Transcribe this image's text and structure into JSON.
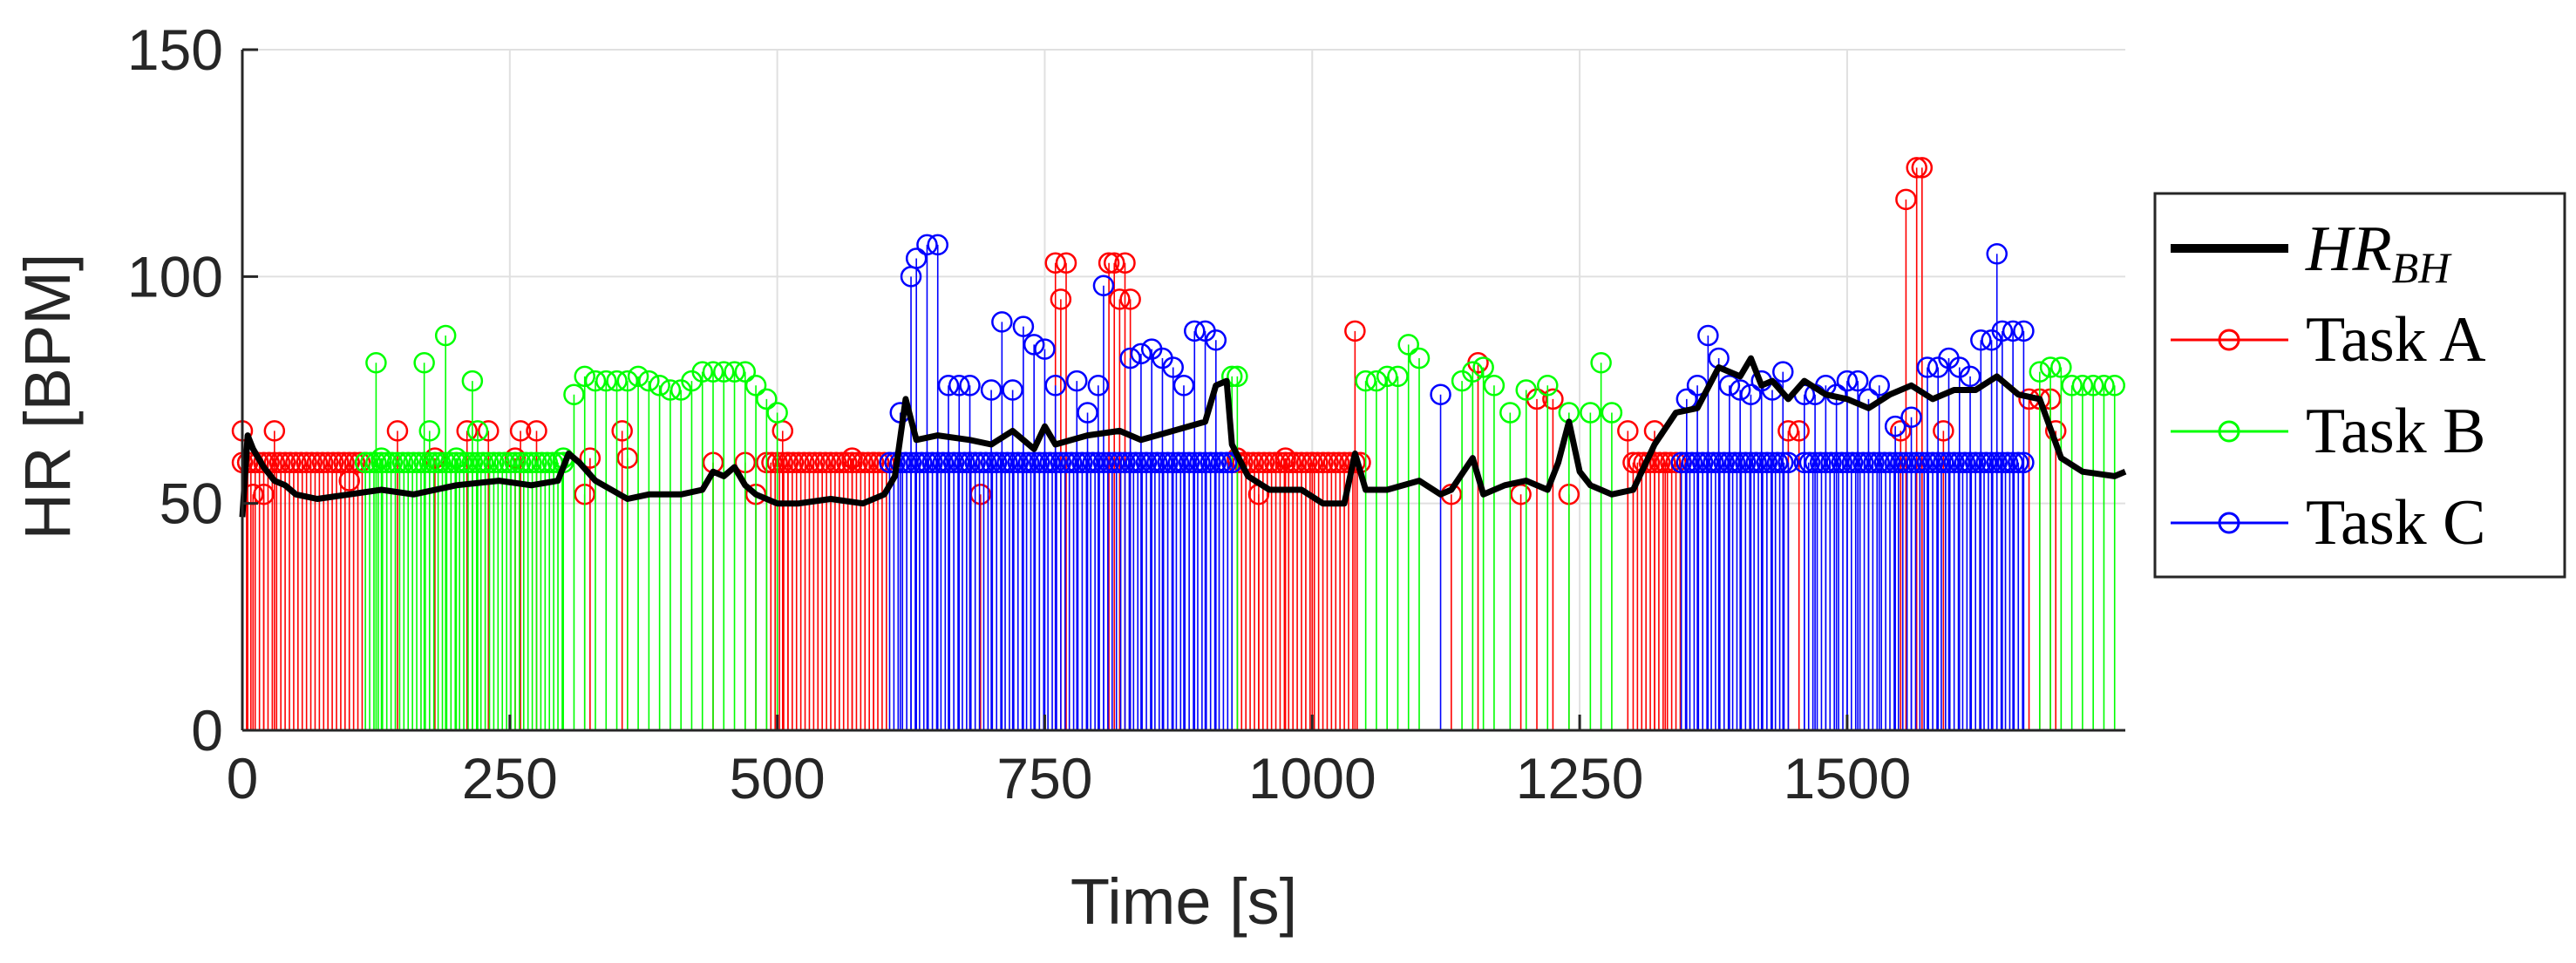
{
  "chart_data": {
    "type": "stem+line",
    "title": "",
    "xlabel": "Time [s]",
    "ylabel": "HR [BPM]",
    "xlim": [
      0,
      1760
    ],
    "ylim": [
      0,
      150
    ],
    "xticks": [
      0,
      250,
      500,
      750,
      1000,
      1250,
      1500
    ],
    "yticks": [
      0,
      50,
      100,
      150
    ],
    "grid": true,
    "legend_position": "right",
    "legend": {
      "hr_main": "HR",
      "hr_sub": "BH",
      "task_a": "Task A",
      "task_b": "Task B",
      "task_c": "Task C"
    },
    "colors": {
      "task_a": "#ff0000",
      "task_b": "#00ff00",
      "task_c": "#0000ff",
      "hr_bh": "#000000"
    },
    "stem_series": {
      "task_a": {
        "segments": [
          [
            0,
            115,
            59,
            0
          ],
          [
            490,
            605,
            59,
            0
          ],
          [
            930,
            1045,
            59,
            0
          ],
          [
            1300,
            1345,
            59,
            0
          ]
        ],
        "markers": [
          [
            0,
            66
          ],
          [
            5,
            59
          ],
          [
            10,
            52
          ],
          [
            20,
            52
          ],
          [
            30,
            66
          ],
          [
            100,
            55
          ],
          [
            145,
            66
          ],
          [
            180,
            60
          ],
          [
            210,
            66
          ],
          [
            230,
            66
          ],
          [
            255,
            60
          ],
          [
            260,
            66
          ],
          [
            275,
            66
          ],
          [
            320,
            52
          ],
          [
            325,
            60
          ],
          [
            355,
            66
          ],
          [
            360,
            60
          ],
          [
            440,
            59
          ],
          [
            470,
            59
          ],
          [
            480,
            52
          ],
          [
            505,
            66
          ],
          [
            510,
            59
          ],
          [
            570,
            60
          ],
          [
            590,
            59
          ],
          [
            680,
            59
          ],
          [
            690,
            52
          ],
          [
            760,
            103
          ],
          [
            765,
            95
          ],
          [
            770,
            103
          ],
          [
            810,
            103
          ],
          [
            815,
            103
          ],
          [
            820,
            95
          ],
          [
            825,
            103
          ],
          [
            830,
            95
          ],
          [
            930,
            60
          ],
          [
            950,
            52
          ],
          [
            975,
            60
          ],
          [
            1000,
            59
          ],
          [
            1040,
            88
          ],
          [
            1130,
            52
          ],
          [
            1155,
            81
          ],
          [
            1195,
            52
          ],
          [
            1210,
            73
          ],
          [
            1225,
            73
          ],
          [
            1240,
            52
          ],
          [
            1295,
            66
          ],
          [
            1320,
            66
          ],
          [
            1330,
            59
          ],
          [
            1445,
            66
          ],
          [
            1455,
            66
          ],
          [
            1550,
            66
          ],
          [
            1555,
            117
          ],
          [
            1565,
            124
          ],
          [
            1570,
            124
          ],
          [
            1590,
            66
          ],
          [
            1670,
            73
          ],
          [
            1680,
            73
          ],
          [
            1690,
            73
          ],
          [
            1695,
            66
          ]
        ]
      },
      "task_b": {
        "segments": [
          [
            115,
            300,
            59,
            0
          ]
        ],
        "markers": [
          [
            125,
            81
          ],
          [
            130,
            60
          ],
          [
            170,
            81
          ],
          [
            175,
            66
          ],
          [
            190,
            87
          ],
          [
            200,
            60
          ],
          [
            215,
            77
          ],
          [
            220,
            66
          ],
          [
            300,
            60
          ],
          [
            310,
            74
          ],
          [
            320,
            78
          ],
          [
            330,
            77
          ],
          [
            340,
            77
          ],
          [
            350,
            77
          ],
          [
            360,
            77
          ],
          [
            370,
            78
          ],
          [
            380,
            77
          ],
          [
            390,
            76
          ],
          [
            400,
            75
          ],
          [
            410,
            75
          ],
          [
            420,
            77
          ],
          [
            430,
            79
          ],
          [
            440,
            79
          ],
          [
            450,
            79
          ],
          [
            460,
            79
          ],
          [
            470,
            79
          ],
          [
            480,
            76
          ],
          [
            490,
            73
          ],
          [
            500,
            70
          ],
          [
            925,
            78
          ],
          [
            930,
            78
          ],
          [
            1050,
            77
          ],
          [
            1060,
            77
          ],
          [
            1070,
            78
          ],
          [
            1080,
            78
          ],
          [
            1090,
            85
          ],
          [
            1100,
            82
          ],
          [
            1140,
            77
          ],
          [
            1150,
            79
          ],
          [
            1160,
            80
          ],
          [
            1170,
            76
          ],
          [
            1185,
            70
          ],
          [
            1200,
            75
          ],
          [
            1220,
            76
          ],
          [
            1240,
            70
          ],
          [
            1260,
            70
          ],
          [
            1270,
            81
          ],
          [
            1280,
            70
          ],
          [
            1680,
            79
          ],
          [
            1690,
            80
          ],
          [
            1700,
            80
          ],
          [
            1710,
            76
          ],
          [
            1720,
            76
          ],
          [
            1730,
            76
          ],
          [
            1740,
            76
          ],
          [
            1750,
            76
          ]
        ]
      },
      "task_c": {
        "segments": [
          [
            605,
            925,
            59,
            0
          ],
          [
            1345,
            1445,
            59,
            0
          ],
          [
            1460,
            1665,
            59,
            0
          ]
        ],
        "markers": [
          [
            615,
            70
          ],
          [
            625,
            100
          ],
          [
            630,
            104
          ],
          [
            640,
            107
          ],
          [
            650,
            107
          ],
          [
            660,
            76
          ],
          [
            670,
            76
          ],
          [
            680,
            76
          ],
          [
            700,
            75
          ],
          [
            710,
            90
          ],
          [
            720,
            75
          ],
          [
            730,
            89
          ],
          [
            740,
            85
          ],
          [
            750,
            84
          ],
          [
            760,
            76
          ],
          [
            780,
            77
          ],
          [
            790,
            70
          ],
          [
            800,
            76
          ],
          [
            805,
            98
          ],
          [
            830,
            82
          ],
          [
            840,
            83
          ],
          [
            850,
            84
          ],
          [
            860,
            82
          ],
          [
            870,
            80
          ],
          [
            880,
            76
          ],
          [
            890,
            88
          ],
          [
            900,
            88
          ],
          [
            910,
            86
          ],
          [
            1120,
            74
          ],
          [
            1350,
            73
          ],
          [
            1360,
            76
          ],
          [
            1370,
            87
          ],
          [
            1380,
            82
          ],
          [
            1390,
            76
          ],
          [
            1400,
            75
          ],
          [
            1410,
            74
          ],
          [
            1420,
            77
          ],
          [
            1430,
            75
          ],
          [
            1440,
            79
          ],
          [
            1460,
            74
          ],
          [
            1470,
            74
          ],
          [
            1480,
            76
          ],
          [
            1490,
            74
          ],
          [
            1500,
            77
          ],
          [
            1510,
            77
          ],
          [
            1520,
            73
          ],
          [
            1530,
            76
          ],
          [
            1545,
            67
          ],
          [
            1560,
            69
          ],
          [
            1575,
            80
          ],
          [
            1585,
            80
          ],
          [
            1595,
            82
          ],
          [
            1605,
            80
          ],
          [
            1615,
            78
          ],
          [
            1625,
            86
          ],
          [
            1635,
            86
          ],
          [
            1640,
            105
          ],
          [
            1645,
            88
          ],
          [
            1655,
            88
          ],
          [
            1665,
            88
          ]
        ]
      }
    },
    "hr_bh_line": {
      "x": [
        0,
        5,
        10,
        20,
        30,
        40,
        50,
        70,
        100,
        130,
        160,
        200,
        240,
        270,
        295,
        305,
        315,
        330,
        345,
        360,
        380,
        410,
        430,
        440,
        450,
        460,
        470,
        480,
        500,
        520,
        550,
        580,
        600,
        610,
        620,
        630,
        650,
        680,
        700,
        720,
        740,
        750,
        760,
        790,
        820,
        840,
        870,
        900,
        910,
        920,
        925,
        940,
        960,
        990,
        1010,
        1030,
        1040,
        1050,
        1070,
        1100,
        1120,
        1130,
        1150,
        1160,
        1180,
        1200,
        1220,
        1230,
        1240,
        1250,
        1260,
        1280,
        1300,
        1320,
        1340,
        1360,
        1380,
        1400,
        1410,
        1420,
        1430,
        1445,
        1460,
        1480,
        1500,
        1520,
        1540,
        1560,
        1580,
        1600,
        1620,
        1640,
        1660,
        1680,
        1700,
        1720,
        1750,
        1760
      ],
      "y": [
        47,
        65,
        62,
        58,
        55,
        54,
        52,
        51,
        52,
        53,
        52,
        54,
        55,
        54,
        55,
        61,
        59,
        55,
        53,
        51,
        52,
        52,
        53,
        57,
        56,
        58,
        54,
        52,
        50,
        50,
        51,
        50,
        52,
        56,
        73,
        64,
        65,
        64,
        63,
        66,
        62,
        67,
        63,
        65,
        66,
        64,
        66,
        68,
        76,
        77,
        63,
        56,
        53,
        53,
        50,
        50,
        61,
        53,
        53,
        55,
        52,
        53,
        60,
        52,
        54,
        55,
        53,
        59,
        68,
        57,
        54,
        52,
        53,
        63,
        70,
        71,
        80,
        78,
        82,
        76,
        77,
        73,
        77,
        74,
        73,
        71,
        74,
        76,
        73,
        75,
        75,
        78,
        74,
        73,
        60,
        57,
        56,
        57
      ]
    }
  }
}
